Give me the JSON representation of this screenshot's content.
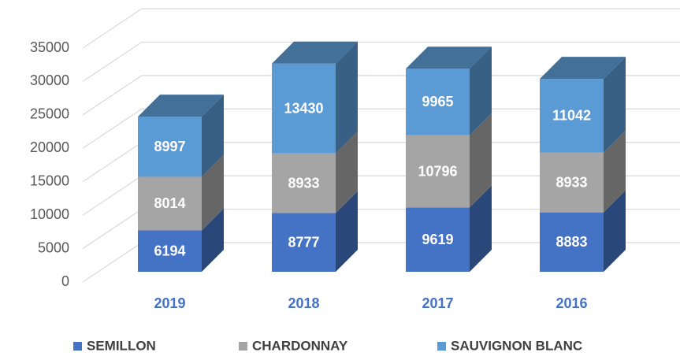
{
  "chart_data": {
    "type": "bar3d_stacked",
    "categories": [
      "2019",
      "2018",
      "2017",
      "2016"
    ],
    "series": [
      {
        "name": "SEMILLON",
        "color": "#4472c4",
        "values": [
          6194,
          8777,
          9619,
          8883
        ]
      },
      {
        "name": "CHARDONNAY",
        "color": "#a5a5a5",
        "values": [
          8014,
          8933,
          10796,
          8933
        ]
      },
      {
        "name": "SAUVIGNON BLANC",
        "color": "#5b9bd5",
        "values": [
          8997,
          13430,
          9965,
          11042
        ]
      }
    ],
    "ylim": [
      0,
      35000
    ],
    "yticks": [
      0,
      5000,
      10000,
      15000,
      20000,
      25000,
      30000,
      35000
    ],
    "grid": true,
    "legend": "bottom"
  }
}
